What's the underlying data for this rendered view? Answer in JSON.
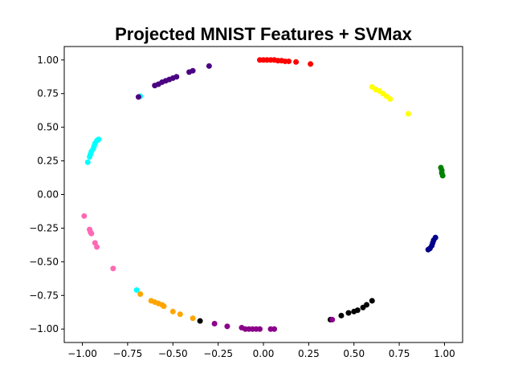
{
  "chart_data": {
    "type": "scatter",
    "title": "Projected MNIST Features + SVMax",
    "xlabel": "",
    "ylabel": "",
    "xlim": [
      -1.1,
      1.1
    ],
    "ylim": [
      -1.1,
      1.1
    ],
    "x_ticks": [
      -1.0,
      -0.75,
      -0.5,
      -0.25,
      0.0,
      0.25,
      0.5,
      0.75,
      1.0
    ],
    "x_tick_labels": [
      "−1.00",
      "−0.75",
      "−0.50",
      "−0.25",
      "0.00",
      "0.25",
      "0.50",
      "0.75",
      "1.00"
    ],
    "y_ticks": [
      1.0,
      0.75,
      0.5,
      0.25,
      0.0,
      -0.25,
      -0.5,
      -0.75,
      -1.0
    ],
    "y_tick_labels": [
      "1.00",
      "0.75",
      "0.50",
      "0.25",
      "0.00",
      "−0.25",
      "−0.50",
      "−0.75",
      "−1.00"
    ],
    "grid": false,
    "legend": "none",
    "series": [
      {
        "color": "#ff0000",
        "points": [
          [
            -0.02,
            1.0
          ],
          [
            0.0,
            1.0
          ],
          [
            0.02,
            1.0
          ],
          [
            0.04,
            1.0
          ],
          [
            0.06,
            1.0
          ],
          [
            0.08,
            0.995
          ],
          [
            0.1,
            0.995
          ],
          [
            0.12,
            0.99
          ],
          [
            0.14,
            0.99
          ],
          [
            0.18,
            0.985
          ],
          [
            0.26,
            0.97
          ]
        ]
      },
      {
        "color": "#ffff00",
        "points": [
          [
            0.6,
            0.8
          ],
          [
            0.62,
            0.78
          ],
          [
            0.64,
            0.77
          ],
          [
            0.66,
            0.75
          ],
          [
            0.68,
            0.73
          ],
          [
            0.7,
            0.71
          ],
          [
            0.8,
            0.6
          ]
        ]
      },
      {
        "color": "#008000",
        "points": [
          [
            0.98,
            0.2
          ],
          [
            0.985,
            0.18
          ],
          [
            0.985,
            0.16
          ],
          [
            0.99,
            0.14
          ]
        ]
      },
      {
        "color": "#00008b",
        "points": [
          [
            0.95,
            -0.32
          ],
          [
            0.94,
            -0.34
          ],
          [
            0.935,
            -0.36
          ],
          [
            0.93,
            -0.38
          ],
          [
            0.92,
            -0.4
          ],
          [
            0.91,
            -0.41
          ]
        ]
      },
      {
        "color": "#000000",
        "points": [
          [
            0.37,
            -0.93
          ],
          [
            0.43,
            -0.9
          ],
          [
            0.47,
            -0.88
          ],
          [
            0.5,
            -0.87
          ],
          [
            0.52,
            -0.86
          ],
          [
            0.55,
            -0.84
          ],
          [
            0.57,
            -0.82
          ],
          [
            0.6,
            -0.79
          ],
          [
            -0.35,
            -0.94
          ]
        ]
      },
      {
        "color": "#8b008b",
        "points": [
          [
            -0.2,
            -0.98
          ],
          [
            -0.12,
            -0.99
          ],
          [
            -0.1,
            -1.0
          ],
          [
            -0.08,
            -1.0
          ],
          [
            -0.06,
            -1.0
          ],
          [
            -0.04,
            -1.0
          ],
          [
            -0.02,
            -1.0
          ],
          [
            0.04,
            -1.0
          ],
          [
            0.06,
            -1.0
          ],
          [
            -0.27,
            -0.96
          ],
          [
            0.38,
            -0.93
          ]
        ]
      },
      {
        "color": "#ffa500",
        "points": [
          [
            -0.68,
            -0.74
          ],
          [
            -0.62,
            -0.79
          ],
          [
            -0.6,
            -0.8
          ],
          [
            -0.58,
            -0.81
          ],
          [
            -0.56,
            -0.82
          ],
          [
            -0.55,
            -0.83
          ],
          [
            -0.5,
            -0.87
          ],
          [
            -0.46,
            -0.89
          ],
          [
            -0.39,
            -0.92
          ]
        ]
      },
      {
        "color": "#ff69b4",
        "points": [
          [
            -0.99,
            -0.16
          ],
          [
            -0.96,
            -0.26
          ],
          [
            -0.955,
            -0.28
          ],
          [
            -0.95,
            -0.29
          ],
          [
            -0.93,
            -0.36
          ],
          [
            -0.92,
            -0.39
          ],
          [
            -0.83,
            -0.55
          ]
        ]
      },
      {
        "color": "#00ffff",
        "points": [
          [
            -0.97,
            0.24
          ],
          [
            -0.96,
            0.28
          ],
          [
            -0.955,
            0.3
          ],
          [
            -0.95,
            0.32
          ],
          [
            -0.94,
            0.34
          ],
          [
            -0.935,
            0.36
          ],
          [
            -0.93,
            0.38
          ],
          [
            -0.92,
            0.4
          ],
          [
            -0.91,
            0.41
          ],
          [
            -0.7,
            -0.71
          ],
          [
            -0.68,
            0.73
          ]
        ]
      },
      {
        "color": "#4b0082",
        "points": [
          [
            -0.6,
            0.81
          ],
          [
            -0.58,
            0.82
          ],
          [
            -0.56,
            0.835
          ],
          [
            -0.54,
            0.845
          ],
          [
            -0.52,
            0.855
          ],
          [
            -0.5,
            0.865
          ],
          [
            -0.48,
            0.875
          ],
          [
            -0.41,
            0.91
          ],
          [
            -0.39,
            0.92
          ],
          [
            -0.3,
            0.955
          ],
          [
            -0.69,
            0.725
          ]
        ]
      }
    ]
  }
}
